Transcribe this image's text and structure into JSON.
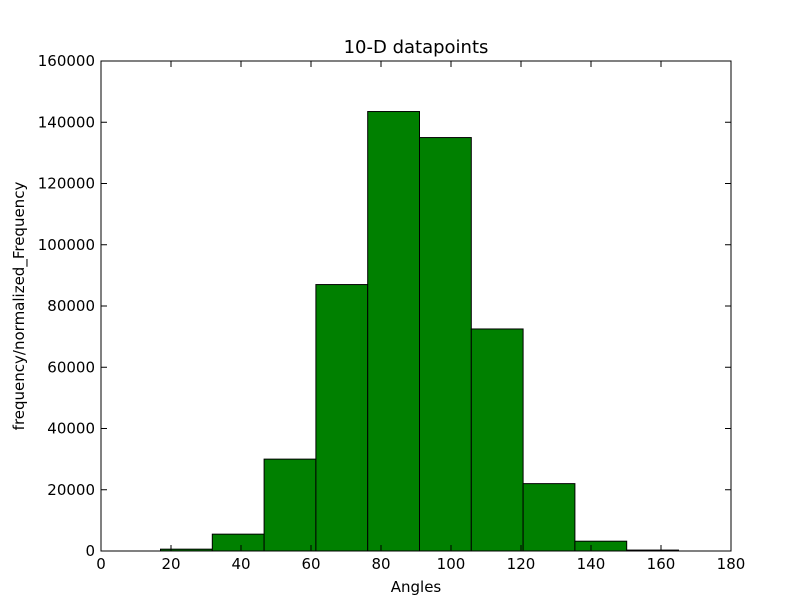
{
  "chart_data": {
    "type": "bar",
    "title": "10-D datapoints",
    "xlabel": "Angles",
    "ylabel": "frequency/normalized_Frequency",
    "xlim": [
      0,
      180
    ],
    "ylim": [
      0,
      160000
    ],
    "xticks": [
      0,
      20,
      40,
      60,
      80,
      100,
      120,
      140,
      160,
      180
    ],
    "yticks": [
      0,
      20000,
      40000,
      60000,
      80000,
      100000,
      120000,
      140000,
      160000
    ],
    "grid": false,
    "legend": "none",
    "bar_color": "#008000",
    "edge_color": "#000000",
    "bins": [
      {
        "x0": 17.0,
        "x1": 31.8,
        "value": 600
      },
      {
        "x0": 31.8,
        "x1": 46.6,
        "value": 5500
      },
      {
        "x0": 46.6,
        "x1": 61.4,
        "value": 30000
      },
      {
        "x0": 61.4,
        "x1": 76.2,
        "value": 87000
      },
      {
        "x0": 76.2,
        "x1": 91.0,
        "value": 143500
      },
      {
        "x0": 91.0,
        "x1": 105.8,
        "value": 135000
      },
      {
        "x0": 105.8,
        "x1": 120.6,
        "value": 72500
      },
      {
        "x0": 120.6,
        "x1": 135.4,
        "value": 22000
      },
      {
        "x0": 135.4,
        "x1": 150.2,
        "value": 3200
      },
      {
        "x0": 150.2,
        "x1": 165.0,
        "value": 300
      }
    ]
  }
}
